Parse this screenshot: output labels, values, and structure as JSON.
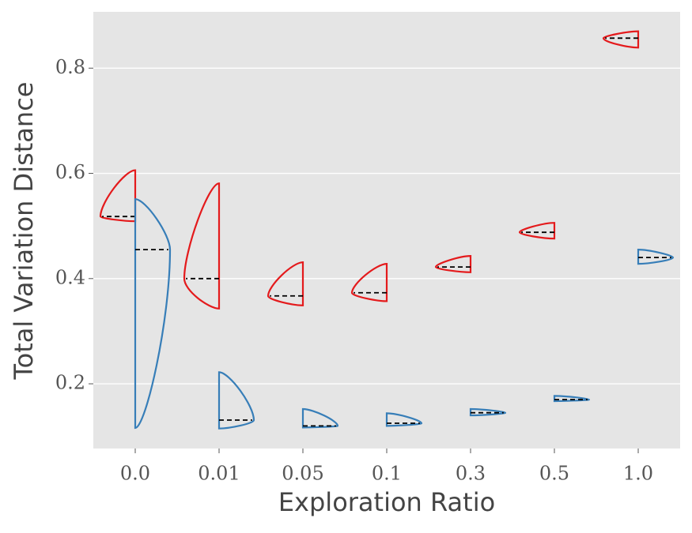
{
  "chart_data": {
    "type": "split-violin",
    "x_label": "Exploration Ratio",
    "y_label": "Total Variation Distance",
    "categories": [
      "0.0",
      "0.01",
      "0.05",
      "0.1",
      "0.3",
      "0.5",
      "1.0"
    ],
    "series": [
      {
        "color": "#e41a1c",
        "side": "left",
        "min": [
          0.509,
          0.343,
          0.349,
          0.357,
          0.412,
          0.476,
          0.839
        ],
        "median": [
          0.518,
          0.4,
          0.367,
          0.373,
          0.422,
          0.488,
          0.857
        ],
        "max": [
          0.606,
          0.581,
          0.431,
          0.428,
          0.443,
          0.506,
          0.87
        ]
      },
      {
        "color": "#377eb8",
        "side": "right",
        "min": [
          0.116,
          0.115,
          0.117,
          0.12,
          0.14,
          0.167,
          0.428
        ],
        "median": [
          0.455,
          0.131,
          0.12,
          0.125,
          0.145,
          0.17,
          0.44
        ],
        "max": [
          0.551,
          0.222,
          0.152,
          0.144,
          0.152,
          0.177,
          0.455
        ]
      }
    ],
    "ylim": [
      0.077,
      0.907
    ],
    "yticks": [
      0.2,
      0.4,
      0.6,
      0.8
    ],
    "grid": true
  }
}
